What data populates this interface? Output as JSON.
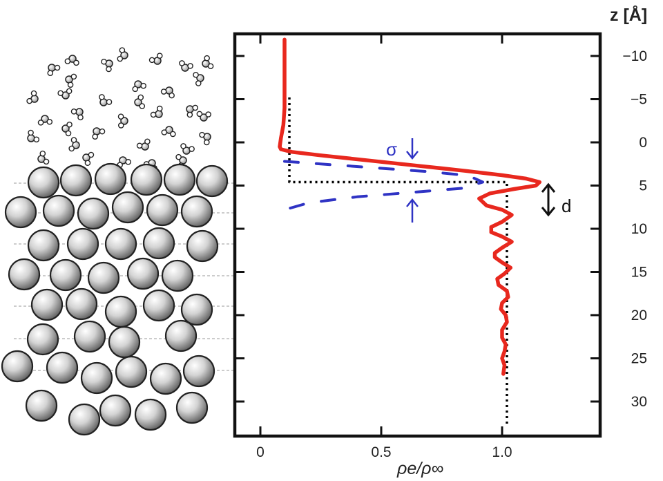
{
  "chart_data": {
    "type": "line",
    "xlabel": "ρe/ρ∞",
    "ylabel": "z [Å]",
    "xlim": [
      -0.1,
      1.4
    ],
    "ylim": [
      -12,
      34
    ],
    "y_inverted": true,
    "x_ticks": [
      0,
      0.5,
      1.0
    ],
    "x_tick_labels": [
      "0",
      "0.5",
      "1.0"
    ],
    "y_ticks": [
      -10,
      -5,
      0,
      5,
      10,
      15,
      20,
      25,
      30
    ],
    "y_tick_labels": [
      "−10",
      "−5",
      "0",
      "5",
      "10",
      "15",
      "20",
      "25",
      "30"
    ],
    "series": [
      {
        "style": "solid",
        "color": "#e8281e",
        "points": [
          [
            0.1,
            -11.9
          ],
          [
            0.1,
            -10
          ],
          [
            0.1,
            -7
          ],
          [
            0.1,
            -4
          ],
          [
            0.095,
            -2
          ],
          [
            0.085,
            -0.5
          ],
          [
            0.08,
            0.5
          ],
          [
            0.085,
            0.8
          ],
          [
            0.13,
            1.1
          ],
          [
            0.25,
            1.5
          ],
          [
            0.45,
            2.1
          ],
          [
            0.65,
            2.7
          ],
          [
            0.85,
            3.3
          ],
          [
            1.0,
            3.8
          ],
          [
            1.1,
            4.2
          ],
          [
            1.155,
            4.6
          ],
          [
            1.14,
            5.0
          ],
          [
            1.05,
            5.4
          ],
          [
            0.95,
            5.9
          ],
          [
            0.905,
            6.5
          ],
          [
            0.935,
            7.3
          ],
          [
            1.0,
            7.8
          ],
          [
            1.04,
            8.4
          ],
          [
            1.0,
            9.2
          ],
          [
            0.955,
            9.8
          ],
          [
            0.955,
            10.4
          ],
          [
            1.0,
            10.9
          ],
          [
            1.04,
            11.5
          ],
          [
            1.0,
            12.2
          ],
          [
            0.97,
            12.8
          ],
          [
            0.97,
            13.3
          ],
          [
            1.0,
            13.9
          ],
          [
            1.035,
            14.5
          ],
          [
            1.01,
            15.2
          ],
          [
            0.98,
            15.8
          ],
          [
            0.985,
            16.5
          ],
          [
            1.02,
            17.2
          ],
          [
            1.025,
            17.9
          ],
          [
            1.0,
            18.6
          ],
          [
            0.995,
            19.3
          ],
          [
            1.015,
            20.0
          ],
          [
            1.02,
            20.8
          ],
          [
            1.0,
            21.7
          ],
          [
            1.0,
            22.6
          ],
          [
            1.015,
            23.4
          ],
          [
            1.01,
            24.2
          ],
          [
            1.0,
            25.0
          ],
          [
            1.01,
            25.8
          ],
          [
            1.005,
            26.8
          ]
        ]
      },
      {
        "style": "dotted",
        "color": "#000000",
        "points": [
          [
            0.12,
            -5.2
          ],
          [
            0.12,
            4.6
          ],
          [
            1.02,
            4.6
          ],
          [
            1.02,
            32.7
          ]
        ]
      },
      {
        "style": "dashed",
        "color": "#2f33c4",
        "points": [
          [
            0.1,
            2.2
          ],
          [
            0.3,
            2.6
          ],
          [
            0.5,
            3.0
          ],
          [
            0.7,
            3.4
          ],
          [
            0.86,
            3.85
          ],
          [
            0.92,
            4.6
          ],
          [
            0.84,
            5.3
          ],
          [
            0.62,
            5.8
          ],
          [
            0.4,
            6.3
          ],
          [
            0.2,
            7.0
          ],
          [
            0.1,
            7.8
          ],
          [
            0.07,
            8.8
          ]
        ]
      }
    ],
    "annotations": [
      {
        "label": "σ",
        "x": 0.57,
        "y": 0.7
      },
      {
        "label": "d",
        "x": 1.31,
        "y": 6.2
      }
    ]
  }
}
